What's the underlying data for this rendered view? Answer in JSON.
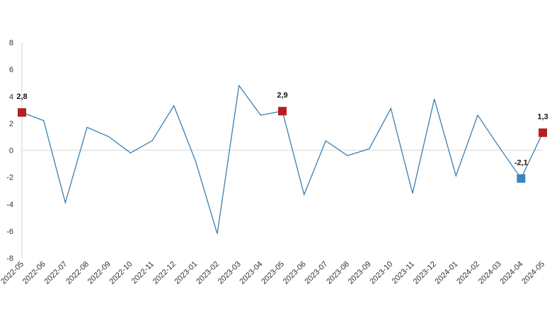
{
  "chart_data": {
    "type": "line",
    "title": "",
    "xlabel": "",
    "ylabel": "",
    "ylim": [
      -8,
      8
    ],
    "yticks": [
      "8",
      "6",
      "4",
      "2",
      "0",
      "-2",
      "-4",
      "-6",
      "-8"
    ],
    "yticks_values": [
      8,
      6,
      4,
      2,
      0,
      -2,
      -4,
      -6,
      -8
    ],
    "grid": false,
    "zero_line": true,
    "categories": [
      "2022-05",
      "2022-06",
      "2022-07",
      "2022-08",
      "2022-09",
      "2022-10",
      "2022-11",
      "2022-12",
      "2023-01",
      "2023-02",
      "2023-03",
      "2023-04",
      "2023-05",
      "2023-06",
      "2023-07",
      "2023-08",
      "2023-09",
      "2023-10",
      "2023-11",
      "2023-12",
      "2024-01",
      "2024-02",
      "2024-03",
      "2024-04",
      "2024-05"
    ],
    "series": [
      {
        "values": [
          2.8,
          2.2,
          -3.9,
          1.7,
          1.0,
          -0.2,
          0.7,
          3.3,
          -0.8,
          -6.2,
          4.8,
          2.6,
          2.9,
          -3.3,
          0.7,
          -0.4,
          0.1,
          3.1,
          -3.2,
          3.8,
          -1.9,
          2.6,
          0.2,
          -2.1,
          1.3
        ],
        "color": "#3a7fb0"
      }
    ],
    "highlights": [
      {
        "index": 0,
        "label": "2,8",
        "color": "#b51f24"
      },
      {
        "index": 12,
        "label": "2,9",
        "color": "#b51f24"
      },
      {
        "index": 23,
        "label": "-2,1",
        "color": "#3b83c2"
      },
      {
        "index": 24,
        "label": "1,3",
        "color": "#b51f24"
      }
    ]
  }
}
